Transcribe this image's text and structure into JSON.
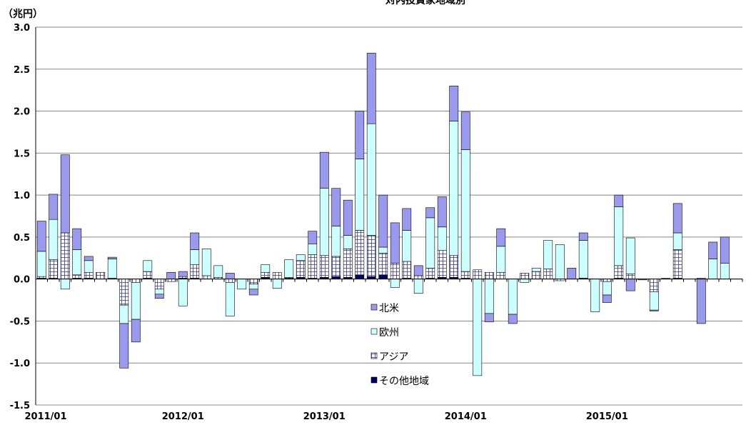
{
  "chart_data": {
    "type": "bar",
    "stacked": true,
    "title": "対内投資家地域別",
    "ylabel": "（兆円）",
    "ylim": [
      -1.5,
      3.0
    ],
    "yticks": [
      "3.0",
      "2.5",
      "2.0",
      "1.5",
      "1.0",
      "0.5",
      "0.0",
      "-0.5",
      "-1.0",
      "-1.5"
    ],
    "ytick_values": [
      3.0,
      2.5,
      2.0,
      1.5,
      1.0,
      0.5,
      0.0,
      -0.5,
      -1.0,
      -1.5
    ],
    "xtick_labels": [
      "2011/01",
      "2012/01",
      "2013/01",
      "2014/01",
      "2015/01"
    ],
    "xtick_index": [
      0,
      12,
      24,
      36,
      48
    ],
    "n_months": 60,
    "grid": true,
    "legend_position": "center",
    "colors": {
      "north_america": "#9999ee",
      "europe": "#ccffff",
      "asia": "#3333aa",
      "asia_fill": "#ffffff",
      "other": "#000066"
    },
    "series": [
      {
        "name": "北米",
        "key": "north_america",
        "values": [
          0.36,
          0.3,
          0.93,
          0.25,
          0.05,
          0.0,
          0.02,
          -0.53,
          -0.27,
          0.0,
          -0.05,
          0.08,
          0.06,
          0.2,
          0.0,
          0.0,
          0.07,
          0.0,
          -0.07,
          0.0,
          0.0,
          0.0,
          0.0,
          0.15,
          0.43,
          0.45,
          0.42,
          0.57,
          0.84,
          0.62,
          0.48,
          0.26,
          0.12,
          0.12,
          0.36,
          0.42,
          0.45,
          0.0,
          -0.1,
          0.21,
          -0.11,
          0.0,
          0.0,
          0.0,
          0.0,
          0.13,
          0.09,
          0.0,
          -0.09,
          0.14,
          -0.14,
          -0.01,
          -0.01,
          0.0,
          0.35,
          0.0,
          -0.53,
          0.2,
          0.31,
          0.0
        ]
      },
      {
        "name": "欧州",
        "key": "europe",
        "values": [
          0.3,
          0.48,
          -0.12,
          0.3,
          0.14,
          0.0,
          0.23,
          -0.22,
          -0.44,
          0.13,
          -0.06,
          0.0,
          -0.32,
          0.18,
          0.32,
          0.14,
          -0.4,
          -0.12,
          -0.06,
          0.09,
          -0.11,
          0.21,
          0.07,
          0.13,
          0.8,
          0.36,
          0.16,
          0.85,
          1.33,
          0.07,
          -0.1,
          0.37,
          -0.17,
          0.6,
          0.28,
          1.6,
          1.45,
          -1.15,
          -0.41,
          0.31,
          -0.42,
          -0.04,
          0.04,
          0.34,
          0.41,
          0.0,
          0.45,
          -0.39,
          -0.16,
          0.7,
          0.43,
          0.0,
          -0.22,
          0.0,
          0.2,
          0.0,
          0.01,
          0.24,
          0.19,
          0.0
        ]
      },
      {
        "name": "アジア",
        "key": "asia",
        "values": [
          0.02,
          0.22,
          0.55,
          0.04,
          0.07,
          0.08,
          0.01,
          -0.31,
          -0.04,
          0.08,
          -0.12,
          -0.03,
          0.02,
          0.16,
          0.04,
          0.02,
          -0.04,
          0.0,
          -0.06,
          0.06,
          0.08,
          0.01,
          0.2,
          0.28,
          0.26,
          0.24,
          0.34,
          0.53,
          0.49,
          0.26,
          0.19,
          0.2,
          0.04,
          0.12,
          0.32,
          0.26,
          0.08,
          0.11,
          0.08,
          0.08,
          0.0,
          0.07,
          0.09,
          0.12,
          -0.02,
          0.0,
          0.0,
          0.0,
          -0.03,
          0.15,
          0.06,
          0.0,
          -0.15,
          0.01,
          0.34,
          0.0,
          0.0,
          0.0,
          0.0,
          0.0
        ]
      },
      {
        "name": "その他地域",
        "key": "other",
        "values": [
          0.01,
          0.01,
          0.0,
          0.01,
          0.01,
          0.0,
          0.0,
          0.0,
          0.0,
          0.01,
          0.0,
          0.0,
          0.01,
          0.01,
          0.0,
          0.0,
          0.0,
          0.0,
          0.0,
          0.02,
          0.0,
          0.01,
          0.02,
          0.01,
          0.02,
          0.03,
          0.02,
          0.05,
          0.03,
          0.05,
          0.0,
          0.01,
          0.0,
          0.01,
          0.02,
          0.02,
          0.01,
          0.0,
          0.0,
          0.0,
          0.0,
          0.0,
          0.0,
          0.0,
          0.0,
          0.0,
          0.01,
          0.0,
          0.0,
          0.01,
          0.0,
          0.0,
          0.0,
          0.0,
          0.01,
          0.0,
          0.0,
          0.0,
          0.0,
          0.0
        ]
      }
    ]
  }
}
